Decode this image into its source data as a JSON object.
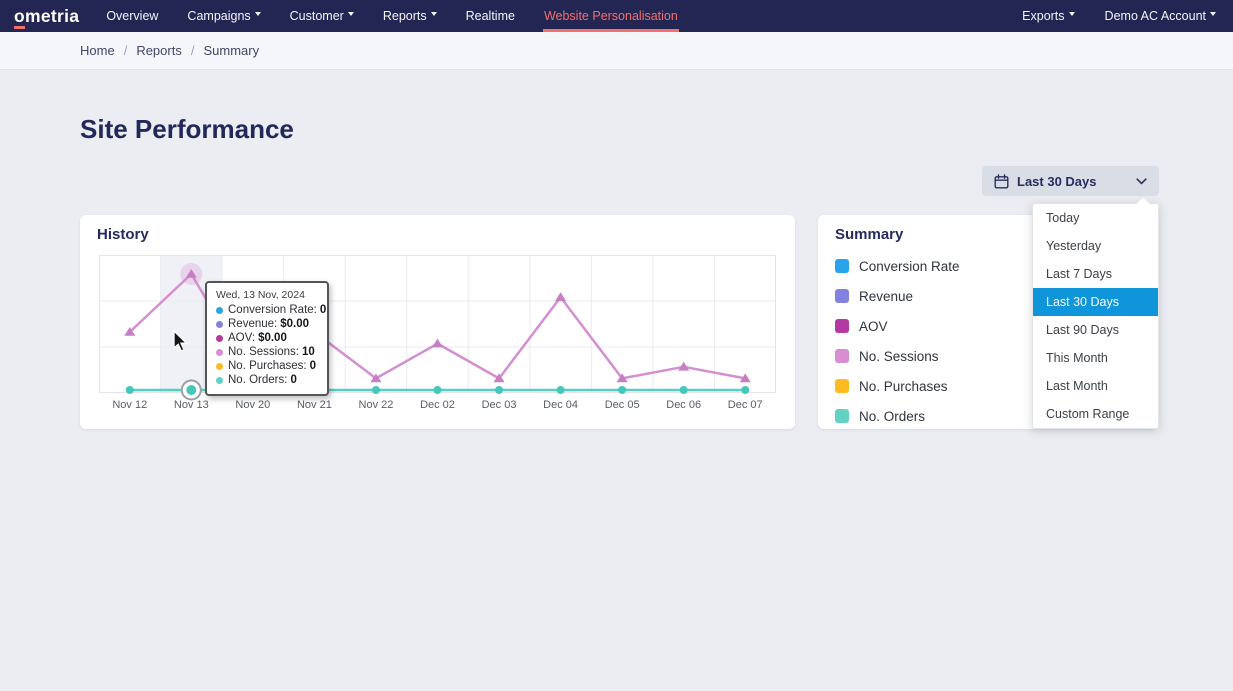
{
  "colors": {
    "navbar_bg": "#232553",
    "accent": "#f0716d",
    "page_bg": "#ebedf2",
    "selected_blue": "#0f95da"
  },
  "navbar": {
    "logo": {
      "first_letter": "o",
      "rest": "metria"
    },
    "items": [
      {
        "label": "Overview"
      },
      {
        "label": "Campaigns"
      },
      {
        "label": "Customer"
      },
      {
        "label": "Reports"
      },
      {
        "label": "Realtime"
      },
      {
        "label": "Website Personalisation"
      }
    ],
    "active_color": "#f0716d",
    "right_items": [
      {
        "label": "Exports"
      },
      {
        "label": "Demo AC Account"
      }
    ]
  },
  "breadcrumb": {
    "items": [
      "Home",
      "Reports",
      "Summary"
    ],
    "separator": "/"
  },
  "page": {
    "title": "Site Performance"
  },
  "date_filter": {
    "button_label": "Last 30 Days",
    "selected": "Last 30 Days",
    "selected_bg": "#0f95da",
    "options": [
      "Today",
      "Yesterday",
      "Last 7 Days",
      "Last 30 Days",
      "Last 90 Days",
      "This Month",
      "Last Month",
      "Custom Range"
    ]
  },
  "history": {
    "title": "History"
  },
  "summary": {
    "title": "Summary",
    "legend": [
      {
        "label": "Conversion Rate",
        "color": "#29a3ea"
      },
      {
        "label": "Revenue",
        "color": "#8482e0"
      },
      {
        "label": "AOV",
        "color": "#b23aa2"
      },
      {
        "label": "No. Sessions",
        "color": "#d78fd2"
      },
      {
        "label": "No. Purchases",
        "color": "#fbbb21"
      },
      {
        "label": "No. Orders",
        "color": "#62d2c3"
      }
    ]
  },
  "tooltip": {
    "title": "Wed, 13 Nov, 2024",
    "rows": [
      {
        "label": "Conversion Rate:",
        "value": "0",
        "color": "#29a3ea"
      },
      {
        "label": "Revenue:",
        "value": "$0.00",
        "color": "#8482e0"
      },
      {
        "label": "AOV:",
        "value": "$0.00",
        "color": "#b23aa2"
      },
      {
        "label": "No. Sessions:",
        "value": "10",
        "color": "#d78fd2"
      },
      {
        "label": "No. Purchases:",
        "value": "0",
        "color": "#fbbb21"
      },
      {
        "label": "No. Orders:",
        "value": "0",
        "color": "#62d2c3"
      }
    ]
  },
  "chart_data": {
    "type": "line",
    "title": "History",
    "x": [
      "Nov 12",
      "Nov 13",
      "Nov 20",
      "Nov 21",
      "Nov 22",
      "Dec 02",
      "Dec 03",
      "Dec 04",
      "Dec 05",
      "Dec 06",
      "Dec 07"
    ],
    "series": [
      {
        "name": "No. Sessions",
        "color": "#d48fd0",
        "marker_color": "#c77fc3",
        "marker": "triangle",
        "values": [
          5,
          10,
          1,
          5,
          1,
          4,
          1,
          8,
          1,
          2,
          1
        ]
      },
      {
        "name": "No. Orders",
        "color": "#56cec0",
        "marker_color": "#45c8b9",
        "marker": "circle",
        "values": [
          0,
          0,
          0,
          0,
          0,
          0,
          0,
          0,
          0,
          0,
          0
        ]
      }
    ],
    "hover_index": 1,
    "hover_date": "Wed, 13 Nov, 2024",
    "ylim": [
      0,
      12
    ],
    "grid": true,
    "legend_position": "right-card"
  }
}
